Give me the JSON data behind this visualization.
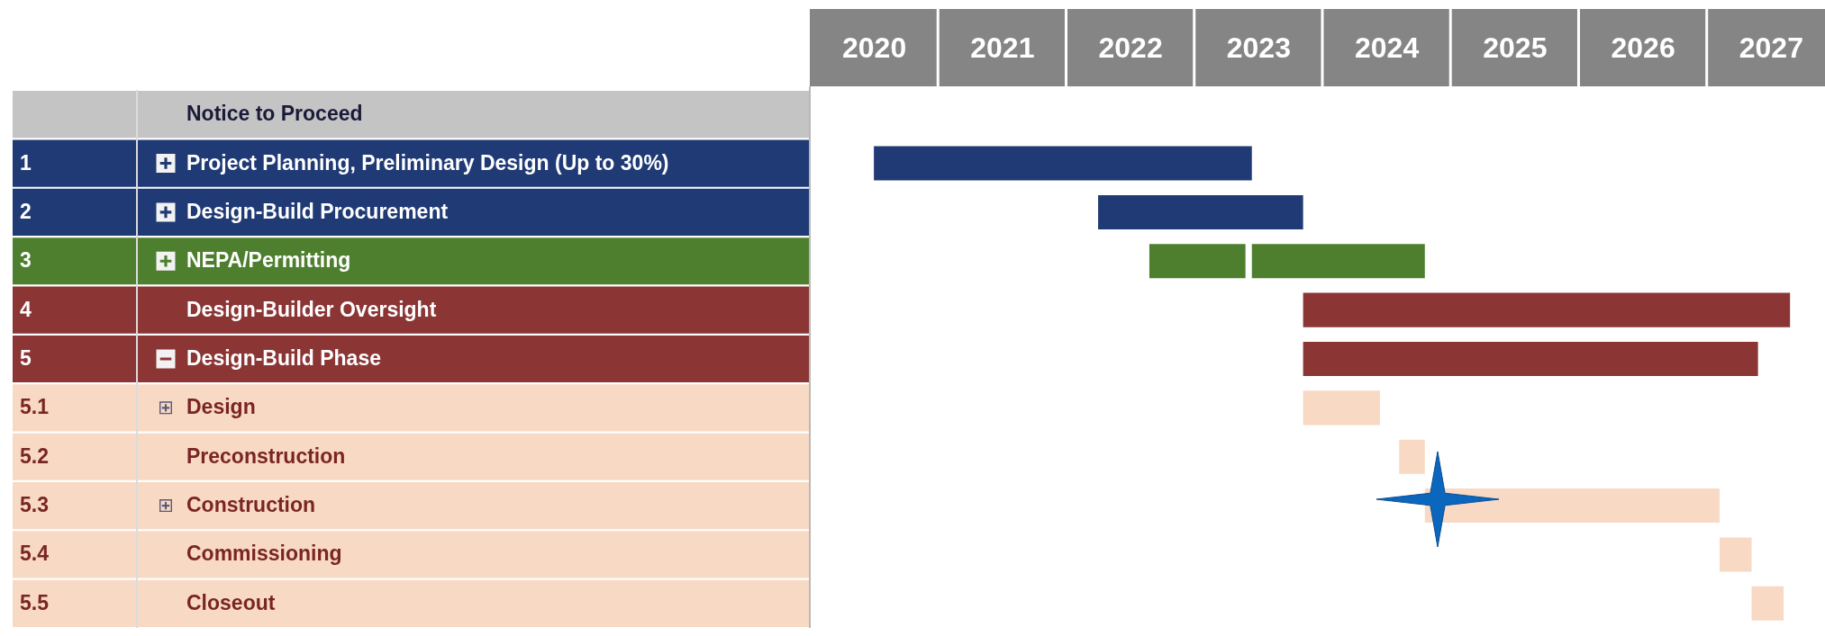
{
  "chart_data": {
    "type": "bar",
    "orientation": "horizontal",
    "categories": [
      "Notice to Proceed",
      "Project Planning, Preliminary Design (Up to 30%)",
      "Design-Build Procurement",
      "NEPA/Permitting",
      "Design-Builder Oversight",
      "Design-Build Phase",
      "Design",
      "Preconstruction",
      "Construction",
      "Commissioning",
      "Closeout"
    ],
    "xlim": [
      2020,
      2027.93
    ],
    "xticks": [
      {
        "value": 2020.5,
        "label": "2020"
      },
      {
        "value": 2021.5,
        "label": "2021"
      },
      {
        "value": 2022.5,
        "label": "2022"
      },
      {
        "value": 2023.5,
        "label": "2023"
      },
      {
        "value": 2024.5,
        "label": "2024"
      },
      {
        "value": 2025.5,
        "label": "2025"
      },
      {
        "value": 2026.5,
        "label": "2026"
      },
      {
        "value": 2027.5,
        "label": "2027"
      }
    ],
    "series": [
      {
        "colors": [
          null,
          "#1f3a75",
          "#1f3a75",
          "#4e7f2e",
          "#8b3535",
          "#8b3535",
          "#f8d9c4",
          "#f8d9c4",
          "#f8d9c4",
          "#f8d9c4",
          "#f8d9c4"
        ],
        "base": [
          null,
          2020.5,
          2022.25,
          2022.65,
          2023.85,
          2023.85,
          2023.85,
          2024.6,
          2024.8,
          2027.1,
          2027.35
        ],
        "values": [
          null,
          2.95,
          1.6,
          0.75,
          3.8,
          3.55,
          0.6,
          0.2,
          2.3,
          0.25,
          0.25
        ]
      },
      {
        "color": "#4e7f2e",
        "base": [
          null,
          null,
          null,
          2023.45,
          null,
          null,
          null,
          null,
          null,
          null,
          null
        ],
        "values": [
          null,
          null,
          null,
          1.35,
          null,
          null,
          null,
          null,
          null,
          null,
          null
        ]
      }
    ],
    "annotations": [
      "1",
      "2",
      "3",
      "4",
      "5",
      "5.1",
      "5.2",
      "5.3",
      "5.4",
      "5.5"
    ]
  }
}
